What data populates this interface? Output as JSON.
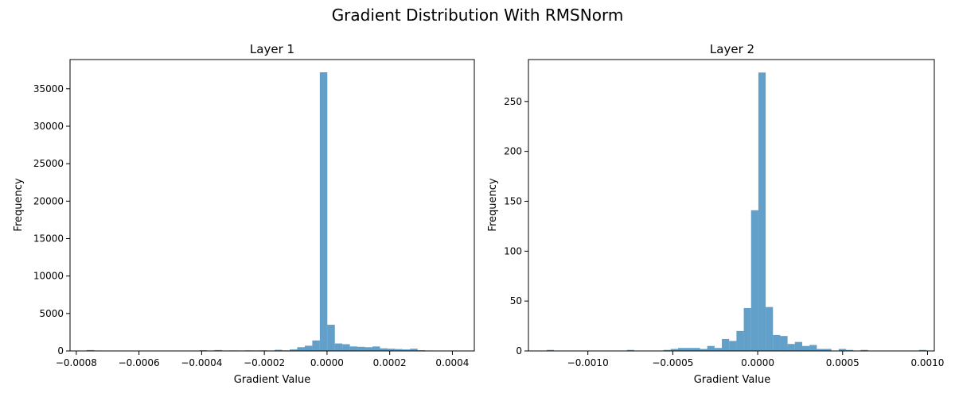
{
  "figure": {
    "title": "Gradient Distribution With RMSNorm",
    "bar_color": "#1f77b4",
    "bar_alpha": 0.7
  },
  "chart_data": [
    {
      "type": "bar",
      "subtype": "histogram",
      "title": "Layer 1",
      "xlabel": "Gradient Value",
      "ylabel": "Frequency",
      "xlim": [
        -0.00082,
        0.00047
      ],
      "ylim": [
        0,
        38900
      ],
      "xticks": [
        -0.0008,
        -0.0006,
        -0.0004,
        -0.0002,
        0.0,
        0.0002,
        0.0004
      ],
      "xtick_labels": [
        "−0.0008",
        "−0.0006",
        "−0.0004",
        "−0.0002",
        "0.0000",
        "0.0002",
        "0.0004"
      ],
      "yticks": [
        0,
        5000,
        10000,
        15000,
        20000,
        25000,
        30000,
        35000
      ],
      "ytick_labels": [
        "0",
        "5000",
        "10000",
        "15000",
        "20000",
        "25000",
        "30000",
        "35000"
      ],
      "bin_edges": [
        -0.000791,
        -0.000767,
        -0.000743,
        -0.000719,
        -0.000695,
        -0.000671,
        -0.000647,
        -0.000623,
        -0.000599,
        -0.000575,
        -0.000551,
        -0.000527,
        -0.000503,
        -0.000479,
        -0.000455,
        -0.000431,
        -0.000407,
        -0.000383,
        -0.000359,
        -0.000335,
        -0.000311,
        -0.000287,
        -0.000263,
        -0.000239,
        -0.000215,
        -0.000191,
        -0.000167,
        -0.000143,
        -0.000119,
        -9.5e-05,
        -7.1e-05,
        -4.7e-05,
        -2.3e-05,
        1e-06,
        2.5e-05,
        4.9e-05,
        7.3e-05,
        9.7e-05,
        0.000121,
        0.000145,
        0.000169,
        0.000193,
        0.000217,
        0.000241,
        0.000265,
        0.000289,
        0.000313,
        0.000337,
        0.000361
      ],
      "counts": [
        30,
        120,
        60,
        40,
        10,
        20,
        0,
        0,
        40,
        20,
        0,
        0,
        0,
        0,
        0,
        30,
        100,
        60,
        120,
        60,
        70,
        60,
        80,
        70,
        80,
        60,
        150,
        80,
        200,
        500,
        700,
        1400,
        37200,
        3500,
        1000,
        900,
        600,
        550,
        500,
        600,
        350,
        300,
        250,
        200,
        300,
        100,
        60,
        20
      ]
    },
    {
      "type": "bar",
      "subtype": "histogram",
      "title": "Layer 2",
      "xlabel": "Gradient Value",
      "ylabel": "Frequency",
      "xlim": [
        -0.00135,
        0.00104
      ],
      "ylim": [
        0,
        292
      ],
      "xticks": [
        -0.001,
        -0.0005,
        0.0,
        0.0005,
        0.001
      ],
      "xtick_labels": [
        "−0.0010",
        "−0.0005",
        "0.0000",
        "0.0005",
        "0.0010"
      ],
      "yticks": [
        0,
        50,
        100,
        150,
        200,
        250
      ],
      "ytick_labels": [
        "0",
        "50",
        "100",
        "150",
        "200",
        "250"
      ],
      "bin_edges": [
        -0.001243,
        -0.0012,
        -0.001157,
        -0.001114,
        -0.001071,
        -0.001028,
        -0.000985,
        -0.000942,
        -0.000899,
        -0.000856,
        -0.000813,
        -0.00077,
        -0.000727,
        -0.000684,
        -0.000641,
        -0.000598,
        -0.000555,
        -0.000512,
        -0.000469,
        -0.000426,
        -0.000383,
        -0.00034,
        -0.000297,
        -0.000254,
        -0.000211,
        -0.000168,
        -0.000125,
        -8.2e-05,
        -3.9e-05,
        4e-06,
        4.7e-05,
        9e-05,
        0.000133,
        0.000176,
        0.000219,
        0.000262,
        0.000305,
        0.000348,
        0.000391,
        0.000434,
        0.000477,
        0.00052,
        0.000563,
        0.000606,
        0.000649,
        0.000692,
        0.000735,
        0.000778,
        0.000821,
        0.000864,
        0.000907,
        0.00095,
        0.000993
      ],
      "counts": [
        1,
        0,
        0,
        0,
        0,
        0,
        0,
        0,
        0,
        0,
        0,
        1,
        0,
        0,
        0,
        0,
        1,
        2,
        3,
        3,
        3,
        2,
        5,
        3,
        12,
        10,
        20,
        43,
        141,
        279,
        44,
        16,
        15,
        7,
        9,
        5,
        6,
        2,
        2,
        0,
        2,
        1,
        0,
        1,
        0,
        0,
        0,
        0,
        0,
        0,
        0,
        1
      ]
    }
  ]
}
